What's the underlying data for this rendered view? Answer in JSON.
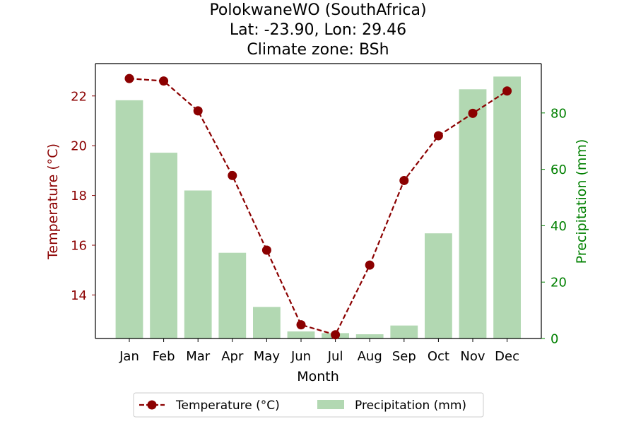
{
  "chart_data": {
    "type": "bar+line",
    "title_lines": [
      "PolokwaneWO (SouthAfrica)",
      "Lat: -23.90, Lon: 29.46",
      "Climate zone: BSh"
    ],
    "xlabel": "Month",
    "ylabel_left": "Temperature (°C)",
    "ylabel_right": "Precipitation (mm)",
    "categories": [
      "Jan",
      "Feb",
      "Mar",
      "Apr",
      "May",
      "Jun",
      "Jul",
      "Aug",
      "Sep",
      "Oct",
      "Nov",
      "Dec"
    ],
    "temperature": {
      "name": "Temperature (°C)",
      "values": [
        22.7,
        22.6,
        21.4,
        18.8,
        15.8,
        12.8,
        12.4,
        15.2,
        18.6,
        20.4,
        21.3,
        22.2
      ],
      "color": "#8b0000",
      "yticks": [
        14,
        16,
        18,
        20,
        22
      ],
      "ylim": [
        12.25,
        23.3
      ]
    },
    "precipitation": {
      "name": "Precipitation (mm)",
      "values": [
        84.5,
        65.9,
        52.5,
        30.4,
        11.2,
        2.5,
        1.9,
        1.5,
        4.6,
        37.3,
        88.4,
        92.9
      ],
      "color": "#b2d8b2",
      "yticks": [
        0,
        20,
        40,
        60,
        80
      ],
      "ylim": [
        0,
        97.5
      ]
    },
    "axis_colors": {
      "left": "#8b0000",
      "right": "#008000"
    },
    "legend_position": "bottom-center"
  }
}
